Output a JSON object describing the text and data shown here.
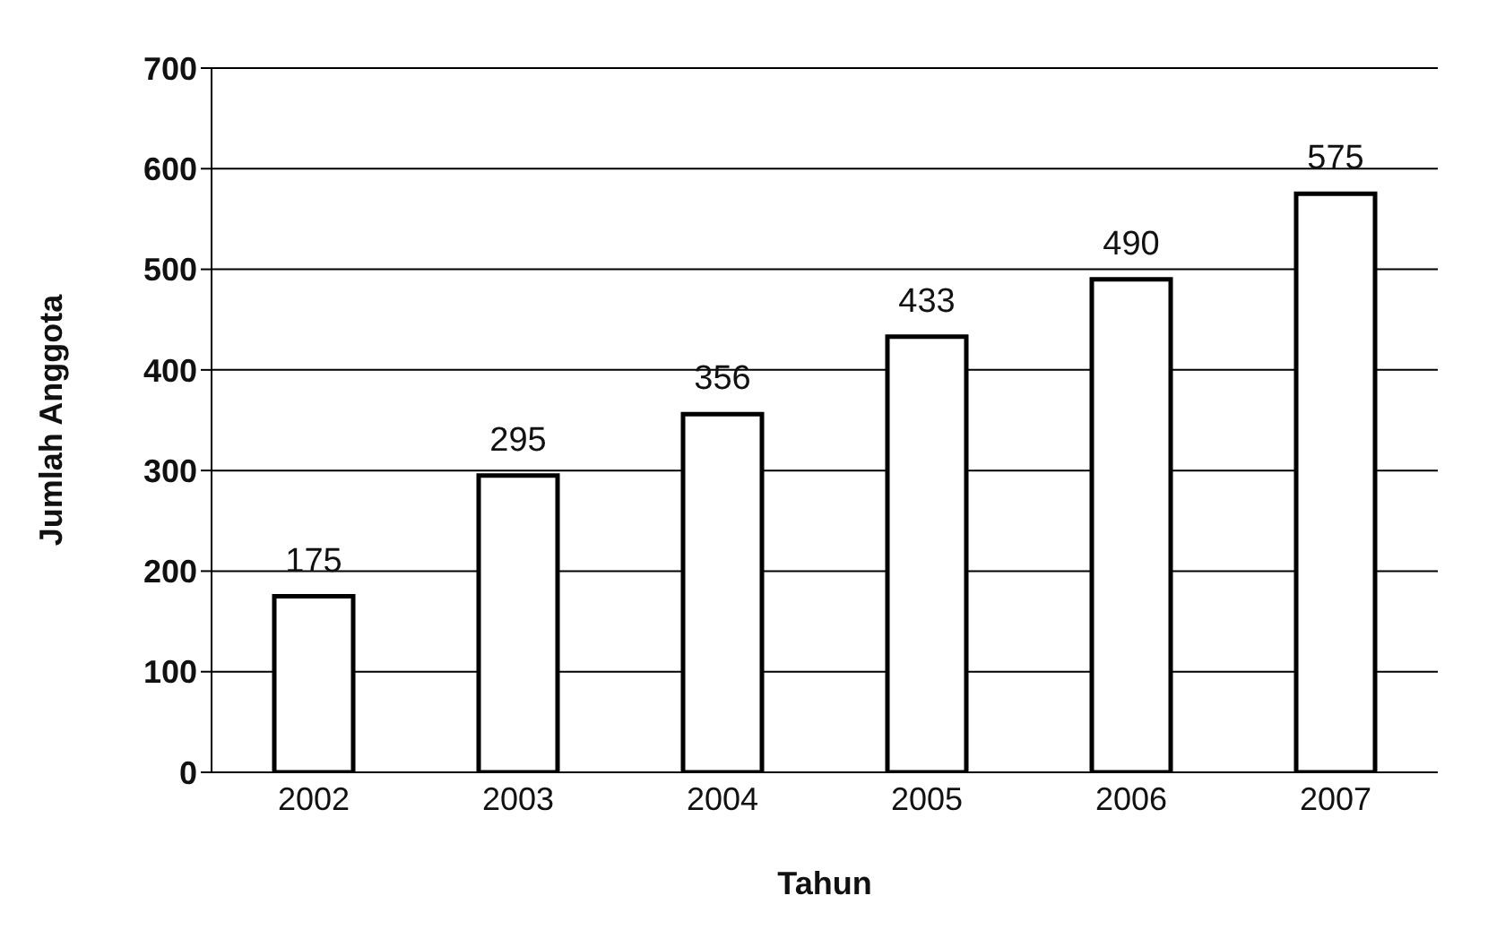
{
  "chart_data": {
    "type": "bar",
    "xlabel": "Tahun",
    "ylabel": "Jumlah Anggota",
    "categories": [
      "2002",
      "2003",
      "2004",
      "2005",
      "2006",
      "2007"
    ],
    "values": [
      175,
      295,
      356,
      433,
      490,
      575
    ],
    "color": "#ffffff",
    "ylim": [
      0,
      700
    ],
    "yticks": [
      0,
      100,
      200,
      300,
      400,
      500,
      600,
      700
    ],
    "grid": "y",
    "data_labels": true
  }
}
